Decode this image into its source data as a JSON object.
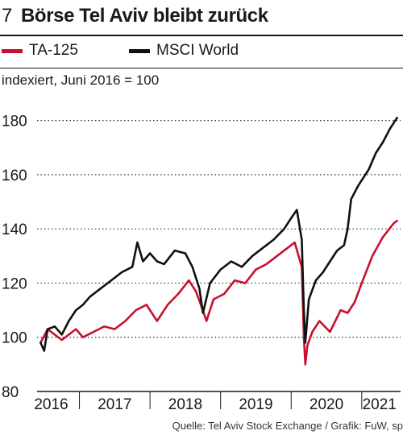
{
  "header": {
    "number": "7",
    "title": "Börse Tel Aviv bleibt zurück"
  },
  "unit_label": "indexiert, Juni 2016 = 100",
  "source": "Quelle: Tel Aviv Stock Exchange / Grafik: FuW, sp",
  "colors": {
    "ta125": "#c8102e",
    "msci": "#111111",
    "grid": "#333333"
  },
  "chart_data": {
    "type": "line",
    "title": "Börse Tel Aviv bleibt zurück",
    "ylabel": "indexiert, Juni 2016 = 100",
    "xlim": [
      2016.4,
      2021.55
    ],
    "ylim": [
      80,
      190
    ],
    "yticks": [
      80,
      100,
      120,
      140,
      160,
      180
    ],
    "xticks": [
      {
        "label": "2016",
        "pos": 2016.6
      },
      {
        "label": "2017",
        "pos": 2017.5
      },
      {
        "label": "2018",
        "pos": 2018.5
      },
      {
        "label": "2019",
        "pos": 2019.5
      },
      {
        "label": "2020",
        "pos": 2020.5
      },
      {
        "label": "2021",
        "pos": 2021.25
      }
    ],
    "grid": true,
    "legend_position": "top",
    "series": [
      {
        "name": "TA-125",
        "color": "#c8102e",
        "x": [
          2016.45,
          2016.55,
          2016.65,
          2016.75,
          2016.85,
          2016.95,
          2017.05,
          2017.2,
          2017.35,
          2017.5,
          2017.65,
          2017.8,
          2017.95,
          2018.05,
          2018.1,
          2018.25,
          2018.4,
          2018.55,
          2018.65,
          2018.72,
          2018.8,
          2018.9,
          2019.05,
          2019.2,
          2019.35,
          2019.5,
          2019.65,
          2019.8,
          2019.95,
          2020.05,
          2020.15,
          2020.18,
          2020.2,
          2020.23,
          2020.3,
          2020.4,
          2020.55,
          2020.7,
          2020.8,
          2020.9,
          2021.0,
          2021.15,
          2021.3,
          2021.45,
          2021.5
        ],
        "y": [
          98,
          103,
          101,
          99,
          101,
          103,
          100,
          102,
          104,
          103,
          106,
          110,
          112,
          108,
          106,
          112,
          116,
          121,
          117,
          112,
          106,
          114,
          116,
          121,
          120,
          125,
          127,
          130,
          133,
          135,
          126,
          100,
          90,
          97,
          102,
          106,
          102,
          110,
          109,
          113,
          120,
          130,
          137,
          142,
          143
        ]
      },
      {
        "name": "MSCI World",
        "color": "#111111",
        "x": [
          2016.45,
          2016.5,
          2016.55,
          2016.65,
          2016.75,
          2016.85,
          2016.95,
          2017.05,
          2017.15,
          2017.3,
          2017.45,
          2017.6,
          2017.75,
          2017.82,
          2017.9,
          2018.0,
          2018.1,
          2018.2,
          2018.35,
          2018.5,
          2018.6,
          2018.7,
          2018.75,
          2018.85,
          2019.0,
          2019.15,
          2019.3,
          2019.45,
          2019.6,
          2019.75,
          2019.9,
          2020.0,
          2020.08,
          2020.15,
          2020.18,
          2020.2,
          2020.25,
          2020.35,
          2020.45,
          2020.55,
          2020.65,
          2020.75,
          2020.8,
          2020.85,
          2020.95,
          2021.1,
          2021.2,
          2021.3,
          2021.4,
          2021.5
        ],
        "y": [
          98,
          95,
          103,
          104,
          101,
          106,
          110,
          112,
          115,
          118,
          121,
          124,
          126,
          135,
          128,
          131,
          128,
          127,
          132,
          131,
          126,
          118,
          109,
          120,
          125,
          128,
          126,
          130,
          133,
          136,
          140,
          144,
          147,
          136,
          110,
          98,
          114,
          121,
          124,
          128,
          132,
          134,
          140,
          151,
          156,
          162,
          168,
          172,
          177,
          181
        ]
      }
    ]
  }
}
